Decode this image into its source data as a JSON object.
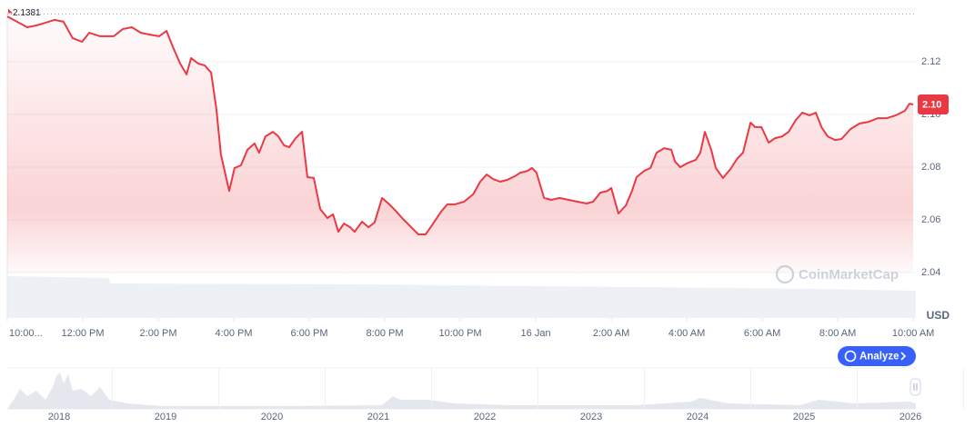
{
  "chart_data": {
    "type": "line",
    "high": 2.1381,
    "current": {
      "value": 2.1038,
      "label": "2.10"
    },
    "currency": "USD",
    "button": "Analyze",
    "watermark": "CoinMarketCap",
    "color": "#ea3943",
    "grid": true,
    "xlim": [
      0,
      24.07
    ],
    "xticks": [
      {
        "value": 0,
        "label": "10:00..."
      },
      {
        "value": 2,
        "label": "12:00 PM"
      },
      {
        "value": 4,
        "label": "2:00 PM"
      },
      {
        "value": 6,
        "label": "4:00 PM"
      },
      {
        "value": 8,
        "label": "6:00 PM"
      },
      {
        "value": 10,
        "label": "8:00 PM"
      },
      {
        "value": 12,
        "label": "10:00 PM"
      },
      {
        "value": 14,
        "label": "16 Jan"
      },
      {
        "value": 16,
        "label": "2:00 AM"
      },
      {
        "value": 18,
        "label": "4:00 AM"
      },
      {
        "value": 20,
        "label": "6:00 AM"
      },
      {
        "value": 22,
        "label": "8:00 AM"
      },
      {
        "value": 24,
        "label": "10:00 AM"
      }
    ],
    "ylim": [
      2.023,
      2.14
    ],
    "yticks": [
      2.04,
      2.06,
      2.08,
      {
        "value": 2.1,
        "label": "2.10"
      },
      2.12
    ],
    "x": [
      0,
      0.53,
      0.77,
      1.01,
      1.25,
      1.49,
      1.73,
      1.98,
      2.17,
      2.46,
      2.82,
      3.06,
      3.3,
      3.54,
      3.78,
      4.02,
      4.22,
      4.39,
      4.58,
      4.75,
      4.87,
      5.06,
      5.23,
      5.4,
      5.54,
      5.66,
      5.88,
      6.02,
      6.19,
      6.36,
      6.55,
      6.67,
      6.84,
      7.04,
      7.18,
      7.33,
      7.47,
      7.64,
      7.81,
      7.95,
      8.12,
      8.29,
      8.48,
      8.63,
      8.77,
      8.92,
      9.08,
      9.2,
      9.4,
      9.57,
      9.73,
      9.93,
      10.12,
      10.29,
      10.46,
      10.7,
      10.89,
      11.08,
      11.25,
      11.49,
      11.66,
      11.86,
      12.1,
      12.34,
      12.53,
      12.7,
      12.87,
      13.06,
      13.25,
      13.45,
      13.59,
      13.78,
      13.9,
      14.02,
      14.22,
      14.41,
      14.63,
      14.87,
      15.11,
      15.35,
      15.52,
      15.71,
      15.9,
      16.0,
      16.19,
      16.39,
      16.55,
      16.67,
      16.87,
      17.04,
      17.2,
      17.4,
      17.59,
      17.69,
      17.83,
      18.0,
      18.24,
      18.36,
      18.48,
      18.65,
      18.77,
      18.96,
      19.16,
      19.33,
      19.49,
      19.69,
      19.81,
      19.98,
      20.17,
      20.34,
      20.53,
      20.7,
      20.89,
      21.06,
      21.25,
      21.42,
      21.57,
      21.73,
      21.93,
      22.1,
      22.34,
      22.58,
      22.82,
      23.06,
      23.3,
      23.54,
      23.78,
      23.9,
      24
    ],
    "values": [
      2.1372,
      2.1331,
      2.1338,
      2.1348,
      2.1359,
      2.1352,
      2.129,
      2.1276,
      2.131,
      2.1297,
      2.1297,
      2.1324,
      2.1331,
      2.131,
      2.1303,
      2.1297,
      2.1317,
      2.1255,
      2.1193,
      2.1152,
      2.1214,
      2.1193,
      2.1186,
      2.1159,
      2.1021,
      2.0848,
      2.071,
      2.0797,
      2.0807,
      2.0866,
      2.089,
      2.0855,
      2.0917,
      2.0934,
      2.0917,
      2.0883,
      2.0876,
      2.091,
      2.0934,
      2.0762,
      2.0759,
      2.0641,
      2.0607,
      2.0621,
      2.0555,
      2.0586,
      2.0572,
      2.0555,
      2.0593,
      2.0572,
      2.059,
      2.0683,
      2.0659,
      2.0634,
      2.0607,
      2.0572,
      2.0545,
      2.0545,
      2.0579,
      2.0631,
      2.0659,
      2.0659,
      2.0669,
      2.0697,
      2.0745,
      2.0772,
      2.0755,
      2.0745,
      2.0752,
      2.0766,
      2.0779,
      2.0786,
      2.0797,
      2.0779,
      2.0683,
      2.0676,
      2.0683,
      2.0676,
      2.0669,
      2.0662,
      2.0669,
      2.0703,
      2.071,
      2.0721,
      2.0624,
      2.0655,
      2.071,
      2.0762,
      2.0786,
      2.0797,
      2.0855,
      2.0872,
      2.0866,
      2.0821,
      2.08,
      2.0814,
      2.0828,
      2.0855,
      2.0934,
      2.0866,
      2.0797,
      2.0759,
      2.0793,
      2.0831,
      2.0855,
      2.0969,
      2.0952,
      2.0952,
      2.0893,
      2.091,
      2.0917,
      2.0934,
      2.0979,
      2.1007,
      2.0997,
      2.1007,
      2.0952,
      2.0917,
      2.0903,
      2.0907,
      2.0945,
      2.0966,
      2.0972,
      2.0986,
      2.0986,
      2.0997,
      2.1014,
      2.1041,
      2.1038
    ],
    "navigator": {
      "categories": [
        "2018",
        "2019",
        "2020",
        "2021",
        "2022",
        "2023",
        "2024",
        "2025",
        "2026"
      ]
    }
  }
}
